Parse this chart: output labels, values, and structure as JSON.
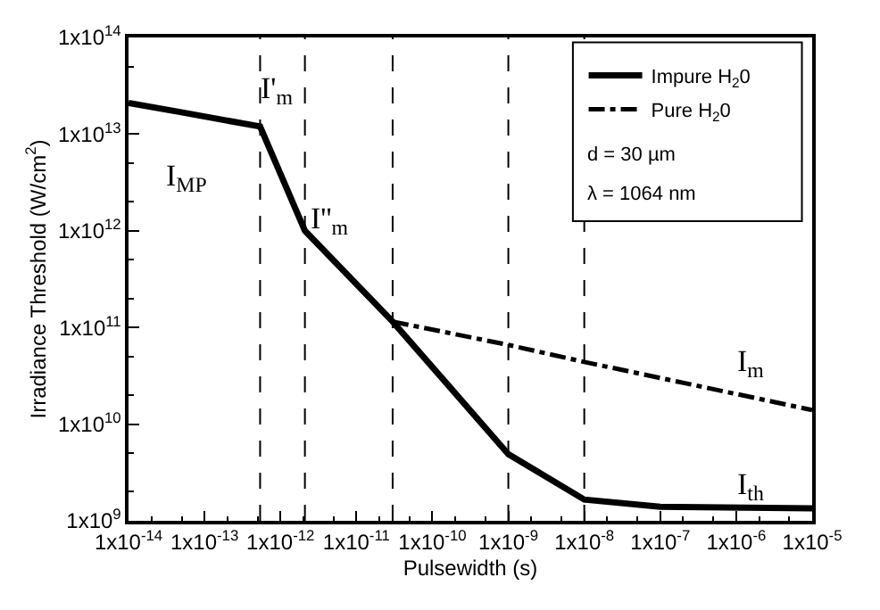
{
  "chart_data": {
    "type": "line",
    "xlabel": "Pulsewidth (s)",
    "ylabel": "Irradiance Threshold (W/cm$^{2}$)",
    "log": "xy",
    "legend": "top right",
    "marker": "none",
    "xlim": [
      1e-14,
      1e-05
    ],
    "ylim": [
      1000000000.0,
      100000000000000.0
    ],
    "xticks": [
      {
        "value": 1e-14,
        "label": "1x10$^{-14}$"
      },
      {
        "value": 1e-13,
        "label": "1x10$^{-13}$"
      },
      {
        "value": 1e-12,
        "label": "1x10$^{-12}$"
      },
      {
        "value": 1e-11,
        "label": "1x10$^{-11}$"
      },
      {
        "value": 1e-10,
        "label": "1x10$^{-10}$"
      },
      {
        "value": 1e-09,
        "label": "1x10$^{-9}$"
      },
      {
        "value": 1e-08,
        "label": "1x10$^{-8}$"
      },
      {
        "value": 1e-07,
        "label": "1x10$^{-7}$"
      },
      {
        "value": 1e-06,
        "label": "1x10$^{-6}$"
      },
      {
        "value": 1e-05,
        "label": "1x10$^{-5}$"
      }
    ],
    "yticks": [
      {
        "value": 1000000000.0,
        "label": "1x10$^{9}$"
      },
      {
        "value": 10000000000.0,
        "label": "1x10$^{10}$"
      },
      {
        "value": 100000000000.0,
        "label": "1x10$^{11}$"
      },
      {
        "value": 1000000000000.0,
        "label": "1x10$^{12}$"
      },
      {
        "value": 10000000000000.0,
        "label": "1x10$^{13}$"
      },
      {
        "value": 100000000000000.0,
        "label": "1x10$^{14}$"
      }
    ],
    "series": [
      {
        "name": "Impure H$_{2}$0",
        "color": "#000000",
        "line_style": "solid",
        "x": [
          1e-14,
          4.6e-14,
          5.4e-13,
          2.1e-12,
          3e-11,
          1e-09,
          1e-08,
          1e-07,
          1e-05
        ],
        "values": [
          21000000000000.0,
          17000000000000.0,
          12000000000000.0,
          1000000000000.0,
          115000000000.0,
          4900000000.0,
          1660000000.0,
          1400000000.0,
          1350000000.0
        ]
      },
      {
        "name": "Pure H$_{2}$0",
        "color": "#000000",
        "line_style": "dashdot",
        "x": [
          3e-11,
          1e-09,
          1e-08,
          1e-05
        ],
        "values": [
          115000000000.0,
          66000000000.0,
          44000000000.0,
          14000000000.0
        ]
      }
    ],
    "ref_lines": [
      {
        "axis": "x",
        "value": 5.4e-13,
        "line_style": "dashed"
      },
      {
        "axis": "x",
        "value": 2.1e-12,
        "line_style": "dashed"
      },
      {
        "axis": "x",
        "value": 3e-11,
        "line_style": "dashed"
      },
      {
        "axis": "x",
        "value": 1e-09,
        "line_style": "dashed"
      },
      {
        "axis": "x",
        "value": 1e-08,
        "line_style": "dashed"
      }
    ],
    "annotations": [
      "d = 30 µm",
      "λ = 1064 nm",
      "I$_{MP}$",
      "I'$_{m}$",
      "I''$_{m}$",
      "I$_{m}$",
      "I$_{th}$"
    ]
  }
}
